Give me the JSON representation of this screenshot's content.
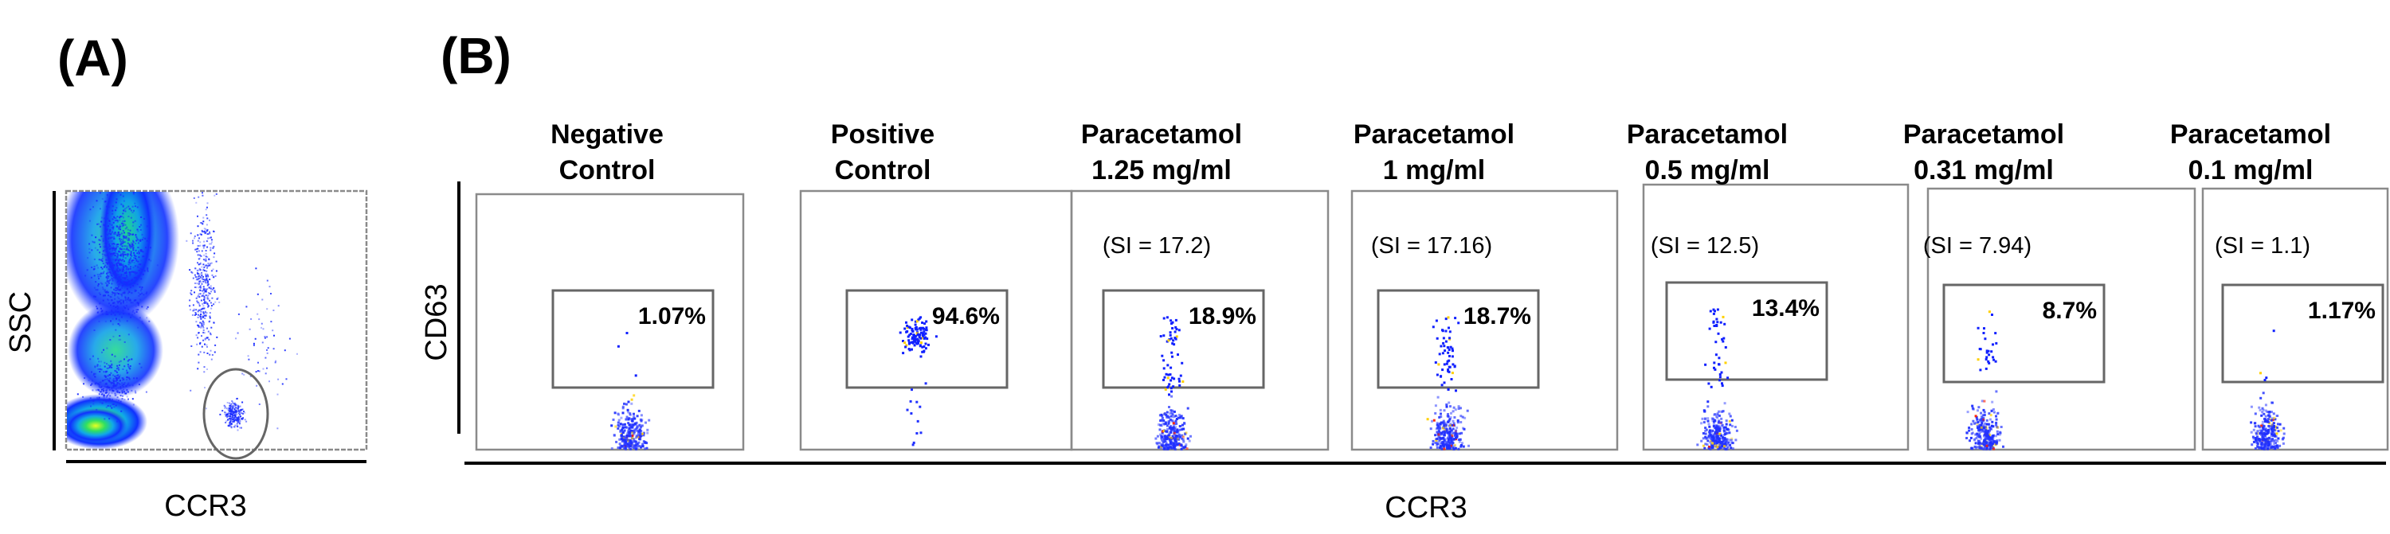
{
  "figure": {
    "panel_a_label": "(A)",
    "panel_b_label": "(B)"
  },
  "chart_data": [
    {
      "type": "scatter",
      "panel": "(A)",
      "xlabel": "CCR3",
      "ylabel": "SSC",
      "gate": "ellipse",
      "colormap": [
        "#0000ff",
        "#00ffff",
        "#00ff66",
        "#ffff00"
      ]
    },
    {
      "type": "scatter",
      "panel": "(B)",
      "xlabel": "CCR3",
      "ylabel": "CD63",
      "dot_color": "#0000ff",
      "panels": [
        {
          "title_line1": "Negative",
          "title_line2": "Control",
          "si": "",
          "gate_percent": "1.07%"
        },
        {
          "title_line1": "Positive",
          "title_line2": "Control",
          "si": "",
          "gate_percent": "94.6%"
        },
        {
          "title_line1": "Paracetamol",
          "title_line2": "1.25 mg/ml",
          "si": "(SI = 17.2)",
          "gate_percent": "18.9%"
        },
        {
          "title_line1": "Paracetamol",
          "title_line2": "1 mg/ml",
          "si": "(SI = 17.16)",
          "gate_percent": "18.7%"
        },
        {
          "title_line1": "Paracetamol",
          "title_line2": "0.5 mg/ml",
          "si": "(SI = 12.5)",
          "gate_percent": "13.4%"
        },
        {
          "title_line1": "Paracetamol",
          "title_line2": "0.31 mg/ml",
          "si": "(SI = 7.94)",
          "gate_percent": "8.7%"
        },
        {
          "title_line1": "Paracetamol",
          "title_line2": "0.1 mg/ml",
          "si": "(SI = 1.1)",
          "gate_percent": "1.17%"
        }
      ]
    }
  ]
}
